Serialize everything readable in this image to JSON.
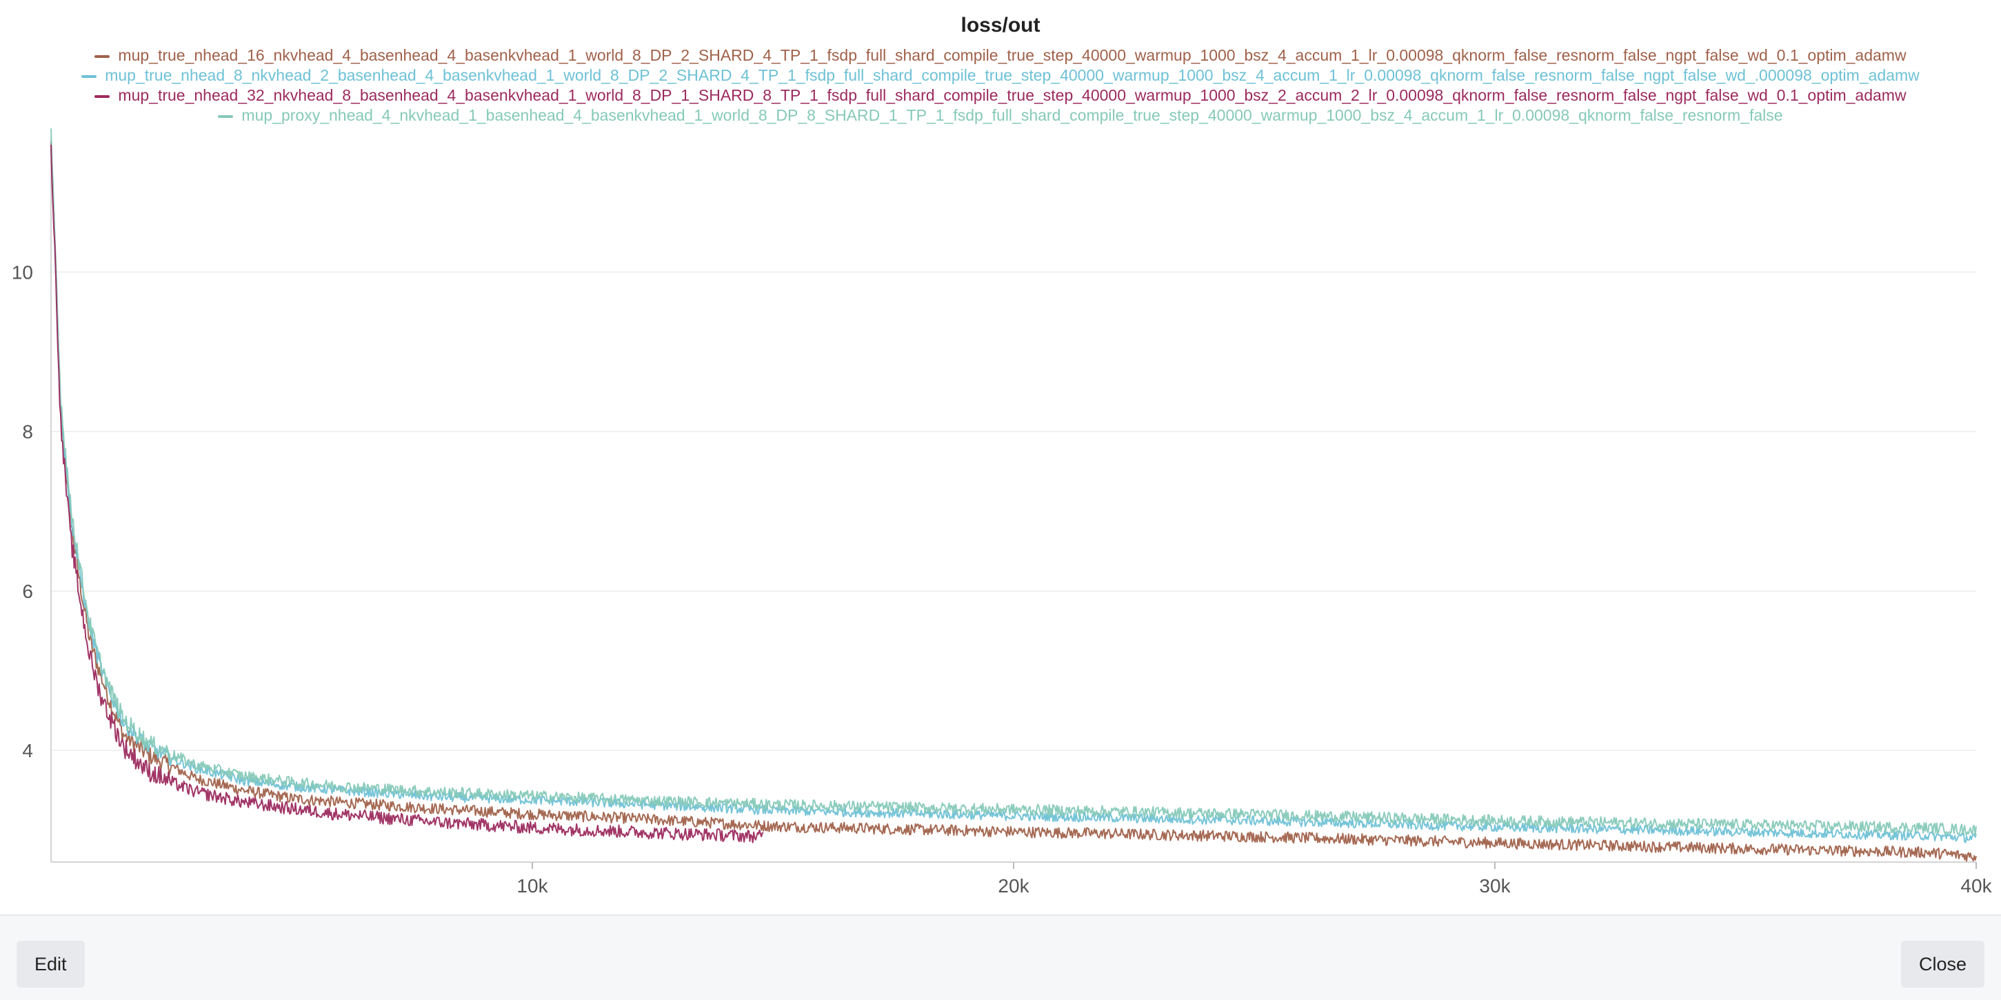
{
  "chart_data": {
    "type": "line",
    "title": "loss/out",
    "xlabel": "",
    "ylabel": "",
    "xlim": [
      0,
      40000
    ],
    "ylim": [
      2.6,
      11.7
    ],
    "xticks": [
      10000,
      20000,
      30000,
      40000
    ],
    "xtick_labels": [
      "10k",
      "20k",
      "30k",
      "40k"
    ],
    "yticks": [
      4,
      6,
      8,
      10
    ],
    "ytick_labels": [
      "4",
      "6",
      "8",
      "10"
    ],
    "grid": true,
    "legend_position": "top",
    "series": [
      {
        "name": "mup_true_nhead_16_nkvhead_4_basenhead_4_basenkvhead_1_world_8_DP_2_SHARD_4_TP_1_fsdp_full_shard_compile_true_step_40000_warmup_1000_bsz_4_accum_1_lr_0.00098_qknorm_false_resnorm_false_ngpt_false_wd_0.1_optim_adamw",
        "color": "#a0614a",
        "noise": 0.07,
        "x": [
          0,
          100,
          200,
          400,
          600,
          800,
          1000,
          1200,
          1500,
          2000,
          2500,
          3000,
          4000,
          5000,
          6000,
          8000,
          10000,
          12000,
          15000,
          20000,
          25000,
          30000,
          35000,
          39000,
          40000
        ],
        "y": [
          11.6,
          10.0,
          8.2,
          6.9,
          6.1,
          5.4,
          5.0,
          4.65,
          4.2,
          3.95,
          3.8,
          3.65,
          3.5,
          3.4,
          3.35,
          3.27,
          3.2,
          3.15,
          3.05,
          2.98,
          2.92,
          2.84,
          2.77,
          2.72,
          2.67
        ]
      },
      {
        "name": "mup_true_nhead_8_nkvhead_2_basenhead_4_basenkvhead_1_world_8_DP_2_SHARD_4_TP_1_fsdp_full_shard_compile_true_step_40000_warmup_1000_bsz_4_accum_1_lr_0.00098_qknorm_false_resnorm_false_ngpt_false_wd_.000098_optim_adamw",
        "color": "#6ec1d6",
        "noise": 0.06,
        "x": [
          0,
          100,
          200,
          400,
          600,
          800,
          1000,
          1200,
          1500,
          2000,
          2500,
          3000,
          4000,
          5000,
          6000,
          8000,
          10000,
          12000,
          15000,
          20000,
          25000,
          30000,
          35000,
          39000,
          40000
        ],
        "y": [
          11.6,
          10.0,
          8.3,
          7.0,
          6.2,
          5.55,
          5.1,
          4.75,
          4.35,
          4.05,
          3.9,
          3.78,
          3.62,
          3.55,
          3.5,
          3.42,
          3.38,
          3.33,
          3.25,
          3.18,
          3.12,
          3.04,
          2.98,
          2.93,
          2.9
        ]
      },
      {
        "name": "mup_true_nhead_32_nkvhead_8_basenhead_4_basenkvhead_1_world_8_DP_1_SHARD_8_TP_1_fsdp_full_shard_compile_true_step_40000_warmup_1000_bsz_2_accum_2_lr_0.00098_qknorm_false_resnorm_false_ngpt_false_wd_0.1_optim_adamw",
        "color": "#9c2a5e",
        "noise": 0.08,
        "x": [
          0,
          100,
          200,
          400,
          600,
          800,
          1000,
          1200,
          1500,
          2000,
          2500,
          3000,
          4000,
          5000,
          6000,
          8000,
          10000,
          12000,
          14800
        ],
        "y": [
          11.6,
          9.9,
          8.1,
          6.7,
          5.9,
          5.2,
          4.75,
          4.45,
          4.05,
          3.75,
          3.6,
          3.48,
          3.35,
          3.27,
          3.2,
          3.1,
          3.03,
          2.98,
          2.92
        ]
      },
      {
        "name": "mup_proxy_nhead_4_nkvhead_1_basenhead_4_basenkvhead_1_world_8_DP_8_SHARD_1_TP_1_fsdp_full_shard_compile_true_step_40000_warmup_1000_bsz_4_accum_1_lr_0.00098_qknorm_false_resnorm_false",
        "color": "#86c9b8",
        "noise": 0.07,
        "x": [
          0,
          100,
          200,
          400,
          600,
          800,
          1000,
          1200,
          1500,
          2000,
          2500,
          3000,
          4000,
          5000,
          6000,
          8000,
          10000,
          12000,
          15000,
          20000,
          25000,
          30000,
          35000,
          39000,
          40000
        ],
        "y": [
          11.7,
          10.1,
          8.4,
          7.1,
          6.3,
          5.6,
          5.15,
          4.8,
          4.4,
          4.1,
          3.95,
          3.82,
          3.68,
          3.6,
          3.55,
          3.48,
          3.43,
          3.38,
          3.32,
          3.26,
          3.2,
          3.12,
          3.07,
          3.03,
          3.0
        ]
      }
    ]
  },
  "footer": {
    "edit_label": "Edit",
    "close_label": "Close"
  }
}
